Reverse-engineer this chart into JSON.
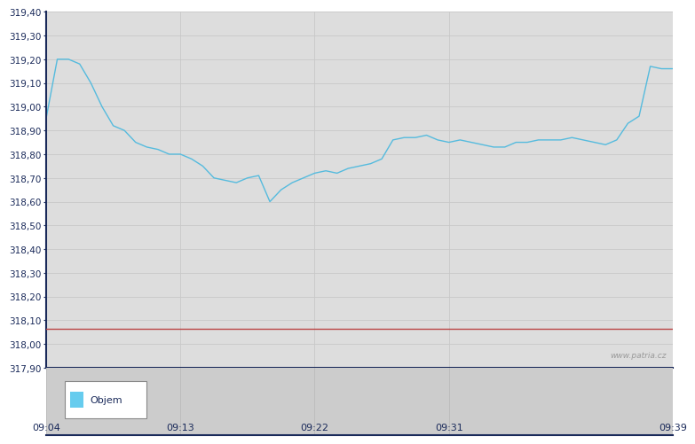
{
  "price_data": [
    318.95,
    319.2,
    319.2,
    319.18,
    319.1,
    319.0,
    318.92,
    318.9,
    318.85,
    318.83,
    318.82,
    318.8,
    318.8,
    318.78,
    318.75,
    318.7,
    318.69,
    318.68,
    318.7,
    318.71,
    318.6,
    318.65,
    318.68,
    318.7,
    318.72,
    318.73,
    318.72,
    318.74,
    318.75,
    318.76,
    318.78,
    318.86,
    318.87,
    318.87,
    318.88,
    318.86,
    318.85,
    318.86,
    318.85,
    318.84,
    318.83,
    318.83,
    318.85,
    318.85,
    318.86,
    318.86,
    318.86,
    318.87,
    318.86,
    318.85,
    318.84,
    318.86,
    318.93,
    318.96,
    319.17,
    319.16,
    319.16
  ],
  "x_ticks_labels": [
    "09:04",
    "09:13",
    "09:22",
    "09:31",
    "09:39"
  ],
  "x_ticks_pos": [
    0,
    12,
    24,
    36,
    56
  ],
  "y_min": 317.9,
  "y_max": 319.4,
  "y_tick_interval": 0.1,
  "reference_line": 318.065,
  "line_color": "#55BBDD",
  "reference_line_color": "#BB4444",
  "outer_bg_color": "#FFFFFF",
  "plot_bg_color": "#DDDDDD",
  "lower_bg_color": "#CCCCCC",
  "legend_label": "Objem",
  "legend_box_color": "#66CCEE",
  "watermark": "www.patria.cz",
  "axis_color": "#1A2A5A",
  "grid_color": "#C8C8C8",
  "text_color": "#1A2A5A",
  "tick_label_fontsize": 7.5,
  "xlabel_fontsize": 8.0
}
